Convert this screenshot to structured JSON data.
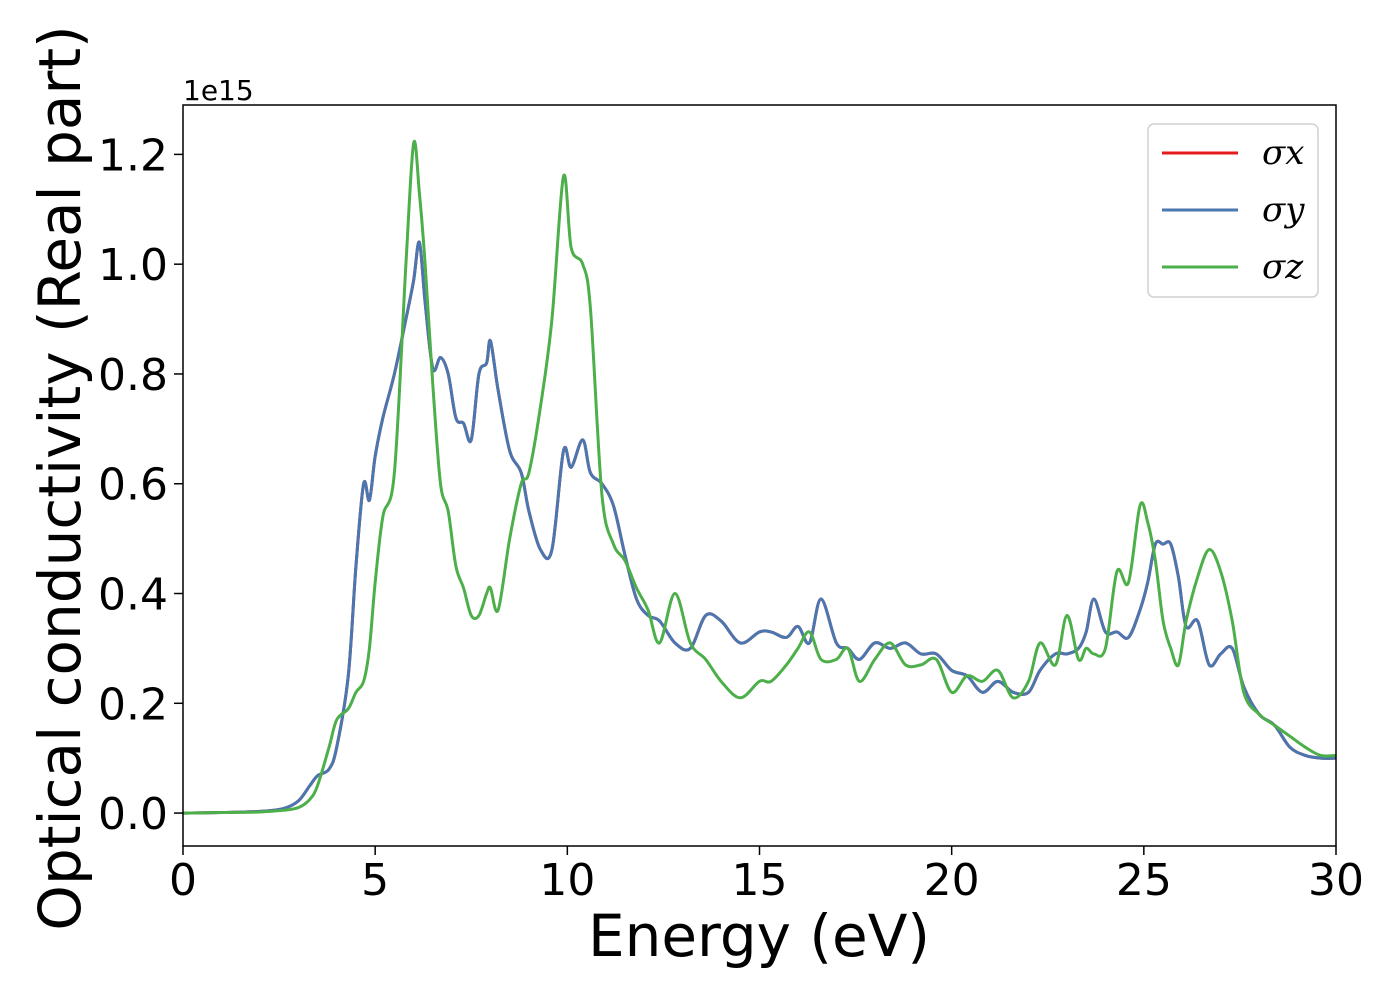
{
  "chart_data": {
    "type": "line",
    "title": "",
    "xlabel": "Energy (eV)",
    "ylabel": "Optical conductivity (Real part)",
    "y_offset_label": "1e15",
    "xlim": [
      0,
      30
    ],
    "ylim": [
      -0.06,
      1.29
    ],
    "x_ticks": [
      0,
      5,
      10,
      15,
      20,
      25,
      30
    ],
    "y_ticks": [
      0.0,
      0.2,
      0.4,
      0.6,
      0.8,
      1.0,
      1.2
    ],
    "x_tick_labels": [
      "0",
      "5",
      "10",
      "15",
      "20",
      "25",
      "30"
    ],
    "y_tick_labels": [
      "0.0",
      "0.2",
      "0.4",
      "0.6",
      "0.8",
      "1.0",
      "1.2"
    ],
    "grid": false,
    "legend_position": "top-right",
    "x": [
      0,
      1,
      2,
      2.6,
      3,
      3.3,
      3.5,
      3.8,
      4.0,
      4.3,
      4.5,
      4.7,
      4.85,
      5.0,
      5.2,
      5.5,
      5.8,
      6.0,
      6.15,
      6.3,
      6.5,
      6.7,
      6.9,
      7.1,
      7.3,
      7.5,
      7.7,
      7.9,
      8.0,
      8.2,
      8.5,
      8.8,
      9.0,
      9.3,
      9.6,
      9.9,
      10.1,
      10.4,
      10.6,
      10.9,
      11.2,
      11.5,
      11.8,
      12.1,
      12.4,
      12.8,
      13.2,
      13.6,
      14.0,
      14.5,
      15.0,
      15.3,
      15.7,
      16.0,
      16.3,
      16.6,
      17.0,
      17.3,
      17.6,
      18.0,
      18.4,
      18.8,
      19.2,
      19.6,
      20.0,
      20.4,
      20.8,
      21.2,
      21.6,
      22.0,
      22.3,
      22.7,
      23.0,
      23.3,
      23.5,
      23.7,
      24.0,
      24.3,
      24.6,
      24.9,
      25.1,
      25.3,
      25.5,
      25.7,
      25.9,
      26.1,
      26.4,
      26.7,
      27.0,
      27.3,
      27.6,
      28.0,
      28.4,
      28.8,
      29.2,
      29.6,
      30.0
    ],
    "series": [
      {
        "name": "σx",
        "color": "#e41a1c",
        "values": [
          0,
          0.001,
          0.003,
          0.008,
          0.022,
          0.05,
          0.068,
          0.08,
          0.12,
          0.25,
          0.45,
          0.6,
          0.57,
          0.65,
          0.72,
          0.8,
          0.9,
          0.97,
          1.04,
          0.93,
          0.81,
          0.83,
          0.8,
          0.72,
          0.71,
          0.68,
          0.8,
          0.82,
          0.86,
          0.77,
          0.66,
          0.62,
          0.55,
          0.48,
          0.48,
          0.66,
          0.63,
          0.68,
          0.62,
          0.6,
          0.56,
          0.47,
          0.39,
          0.36,
          0.35,
          0.31,
          0.3,
          0.36,
          0.35,
          0.31,
          0.33,
          0.33,
          0.32,
          0.34,
          0.31,
          0.39,
          0.31,
          0.3,
          0.28,
          0.31,
          0.3,
          0.31,
          0.29,
          0.29,
          0.26,
          0.25,
          0.22,
          0.24,
          0.22,
          0.22,
          0.26,
          0.29,
          0.29,
          0.3,
          0.33,
          0.39,
          0.33,
          0.33,
          0.32,
          0.37,
          0.42,
          0.49,
          0.49,
          0.49,
          0.43,
          0.34,
          0.35,
          0.27,
          0.29,
          0.3,
          0.23,
          0.18,
          0.16,
          0.12,
          0.105,
          0.1,
          0.1
        ]
      },
      {
        "name": "σy",
        "color": "#4a77b0",
        "values": [
          0,
          0.001,
          0.003,
          0.008,
          0.022,
          0.05,
          0.068,
          0.08,
          0.12,
          0.25,
          0.45,
          0.6,
          0.57,
          0.65,
          0.72,
          0.8,
          0.9,
          0.97,
          1.04,
          0.93,
          0.81,
          0.83,
          0.8,
          0.72,
          0.71,
          0.68,
          0.8,
          0.82,
          0.86,
          0.77,
          0.66,
          0.62,
          0.55,
          0.48,
          0.48,
          0.66,
          0.63,
          0.68,
          0.62,
          0.6,
          0.56,
          0.47,
          0.39,
          0.36,
          0.35,
          0.31,
          0.3,
          0.36,
          0.35,
          0.31,
          0.33,
          0.33,
          0.32,
          0.34,
          0.31,
          0.39,
          0.31,
          0.3,
          0.28,
          0.31,
          0.3,
          0.31,
          0.29,
          0.29,
          0.26,
          0.25,
          0.22,
          0.24,
          0.22,
          0.22,
          0.26,
          0.29,
          0.29,
          0.3,
          0.33,
          0.39,
          0.33,
          0.33,
          0.32,
          0.37,
          0.42,
          0.49,
          0.49,
          0.49,
          0.43,
          0.34,
          0.35,
          0.27,
          0.29,
          0.3,
          0.23,
          0.18,
          0.16,
          0.12,
          0.105,
          0.1,
          0.1
        ]
      },
      {
        "name": "σz",
        "color": "#4daf4a",
        "values": [
          0,
          0.001,
          0.002,
          0.005,
          0.01,
          0.025,
          0.05,
          0.12,
          0.17,
          0.19,
          0.22,
          0.24,
          0.3,
          0.42,
          0.54,
          0.62,
          1.0,
          1.22,
          1.13,
          1.0,
          0.78,
          0.6,
          0.55,
          0.45,
          0.41,
          0.36,
          0.36,
          0.4,
          0.41,
          0.37,
          0.5,
          0.6,
          0.62,
          0.74,
          0.9,
          1.16,
          1.03,
          1.0,
          0.92,
          0.58,
          0.49,
          0.46,
          0.41,
          0.37,
          0.31,
          0.4,
          0.31,
          0.28,
          0.24,
          0.21,
          0.24,
          0.24,
          0.27,
          0.3,
          0.33,
          0.28,
          0.28,
          0.3,
          0.24,
          0.28,
          0.31,
          0.27,
          0.27,
          0.28,
          0.22,
          0.25,
          0.24,
          0.26,
          0.21,
          0.24,
          0.31,
          0.27,
          0.36,
          0.28,
          0.3,
          0.29,
          0.3,
          0.44,
          0.42,
          0.56,
          0.53,
          0.46,
          0.35,
          0.3,
          0.27,
          0.35,
          0.43,
          0.48,
          0.44,
          0.35,
          0.22,
          0.18,
          0.16,
          0.14,
          0.12,
          0.105,
          0.105
        ]
      }
    ]
  }
}
